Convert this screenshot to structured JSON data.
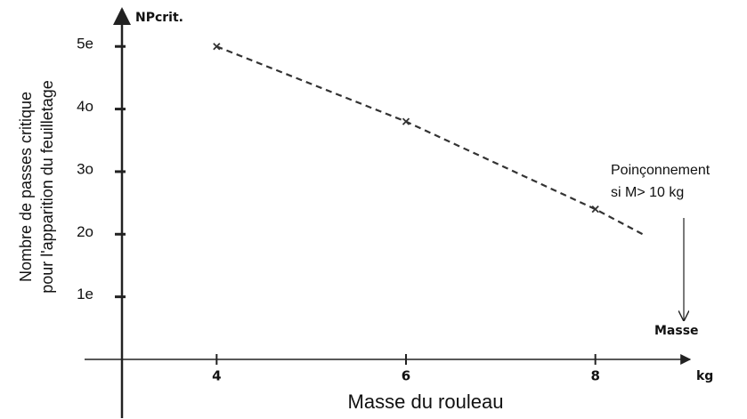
{
  "chart_data": {
    "type": "line",
    "y_axis_title": "NPcrit.",
    "x_axis_title": "Masse",
    "x_unit": "kg",
    "xlabel": "Masse du rouleau",
    "ylabel": [
      "Nombre de passes critique",
      "pour l'apparition du feuilletage"
    ],
    "annotation": [
      "Poinçonnement",
      "si M> 10 kg"
    ],
    "xlim": [
      3,
      9
    ],
    "ylim": [
      0,
      5.6
    ],
    "xticks": [
      4,
      6,
      8
    ],
    "yticks": [
      {
        "value": 1,
        "label": "1e"
      },
      {
        "value": 2,
        "label": "2o"
      },
      {
        "value": 3,
        "label": "3o"
      },
      {
        "value": 4,
        "label": "4o"
      },
      {
        "value": 5,
        "label": "5e"
      }
    ],
    "series": [
      {
        "x": [
          4,
          6,
          8,
          8.5
        ],
        "values": [
          5,
          3.8,
          2.4,
          2.0
        ],
        "style": "dashed",
        "color": "#333333"
      },
      {
        "x": [
          4,
          6,
          8
        ],
        "values": [
          5,
          3.8,
          2.4
        ],
        "marker": "x",
        "color": "#333333"
      }
    ]
  }
}
